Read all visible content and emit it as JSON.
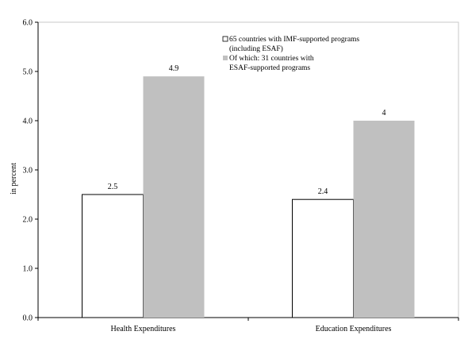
{
  "chart_data": {
    "type": "bar",
    "categories": [
      "Health Expenditures",
      "Education Expenditures"
    ],
    "series": [
      {
        "name": "65 countries with IMF-supported programs (including ESAF)",
        "legend_lines": [
          "65 countries with IMF-supported programs",
          "(including ESAF)"
        ],
        "values": [
          2.5,
          2.4
        ],
        "value_labels": [
          "2.5",
          "2.4"
        ],
        "fill": "#ffffff",
        "stroke": "#000000"
      },
      {
        "name": "Of which: 31 countries with ESAF-supported programs",
        "legend_lines": [
          "Of which: 31 countries with",
          "ESAF-supported programs"
        ],
        "values": [
          4.9,
          4.0
        ],
        "value_labels": [
          "4.9",
          "4"
        ],
        "fill": "#c0c0c0",
        "stroke": "none"
      }
    ],
    "title": "",
    "xlabel": "",
    "ylabel": "in percent",
    "ylim": [
      0,
      6
    ],
    "yticks": [
      "0.0",
      "1.0",
      "2.0",
      "3.0",
      "4.0",
      "5.0",
      "6.0"
    ],
    "grid": false,
    "legend_position": "top-right"
  }
}
